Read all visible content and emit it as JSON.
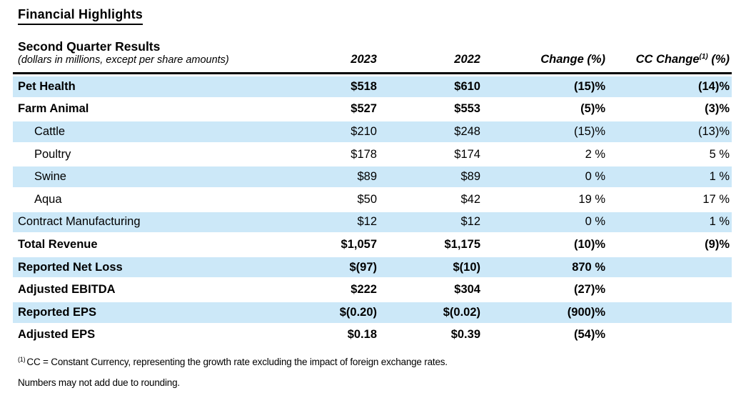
{
  "page": {
    "title": "Financial Highlights"
  },
  "table": {
    "header": {
      "title": "Second Quarter Results",
      "subtitle": "(dollars in millions, except per share amounts)",
      "col_2023": "2023",
      "col_2022": "2022",
      "col_change": "Change (%)",
      "col_cc_change_prefix": "CC Change",
      "col_cc_change_sup": "(1)",
      "col_cc_change_suffix": " (%)"
    },
    "rows": [
      {
        "label": "Pet Health",
        "y2023": "$518",
        "y2022": "$610",
        "change": "(15)%",
        "cc_change": "(14)%",
        "bold": true,
        "shaded": true,
        "indent": false
      },
      {
        "label": "Farm Animal",
        "y2023": "$527",
        "y2022": "$553",
        "change": "(5)%",
        "cc_change": "(3)%",
        "bold": true,
        "shaded": false,
        "indent": false
      },
      {
        "label": "Cattle",
        "y2023": "$210",
        "y2022": "$248",
        "change": "(15)%",
        "cc_change": "(13)%",
        "bold": false,
        "shaded": true,
        "indent": true
      },
      {
        "label": "Poultry",
        "y2023": "$178",
        "y2022": "$174",
        "change": "2 %",
        "cc_change": "5 %",
        "bold": false,
        "shaded": false,
        "indent": true
      },
      {
        "label": "Swine",
        "y2023": "$89",
        "y2022": "$89",
        "change": "0 %",
        "cc_change": "1 %",
        "bold": false,
        "shaded": true,
        "indent": true
      },
      {
        "label": "Aqua",
        "y2023": "$50",
        "y2022": "$42",
        "change": "19 %",
        "cc_change": "17 %",
        "bold": false,
        "shaded": false,
        "indent": true
      },
      {
        "label": "Contract Manufacturing",
        "y2023": "$12",
        "y2022": "$12",
        "change": "0 %",
        "cc_change": "1 %",
        "bold": false,
        "shaded": true,
        "indent": false
      },
      {
        "label": "Total Revenue",
        "y2023": "$1,057",
        "y2022": "$1,175",
        "change": "(10)%",
        "cc_change": "(9)%",
        "bold": true,
        "shaded": false,
        "indent": false
      },
      {
        "label": "Reported Net Loss",
        "y2023": "$(97)",
        "y2022": "$(10)",
        "change": "870 %",
        "cc_change": "",
        "bold": true,
        "shaded": true,
        "indent": false
      },
      {
        "label": "Adjusted EBITDA",
        "y2023": "$222",
        "y2022": "$304",
        "change": "(27)%",
        "cc_change": "",
        "bold": true,
        "shaded": false,
        "indent": false
      },
      {
        "label": "Reported EPS",
        "y2023": "$(0.20)",
        "y2022": "$(0.02)",
        "change": "(900)%",
        "cc_change": "",
        "bold": true,
        "shaded": true,
        "indent": false
      },
      {
        "label": "Adjusted EPS",
        "y2023": "$0.18",
        "y2022": "$0.39",
        "change": "(54)%",
        "cc_change": "",
        "bold": true,
        "shaded": false,
        "indent": false
      }
    ]
  },
  "footnotes": {
    "note1_sup": "(1)",
    "note1_text": "CC = Constant Currency, representing the growth rate excluding the impact of foreign exchange rates.",
    "note2": "Numbers may not add due to rounding."
  },
  "colors": {
    "row_highlight": "#cce8f8",
    "text": "#000000",
    "rule": "#000000"
  }
}
